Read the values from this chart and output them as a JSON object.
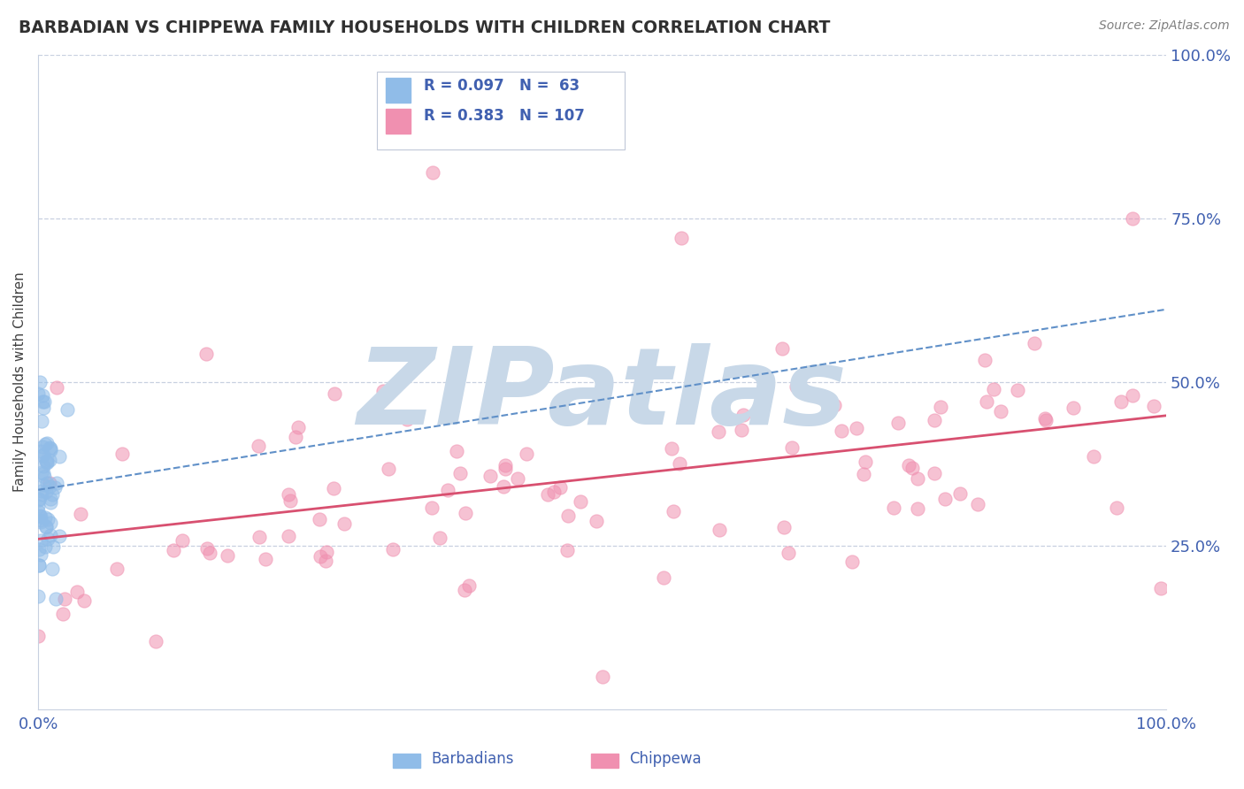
{
  "title": "BARBADIAN VS CHIPPEWA FAMILY HOUSEHOLDS WITH CHILDREN CORRELATION CHART",
  "source": "Source: ZipAtlas.com",
  "ylabel": "Family Households with Children",
  "xlim": [
    0,
    100
  ],
  "ylim": [
    0,
    100
  ],
  "ytick_positions": [
    25,
    50,
    75,
    100
  ],
  "ytick_labels": [
    "25.0%",
    "50.0%",
    "75.0%",
    "100.0%"
  ],
  "xtick_positions": [
    0,
    100
  ],
  "xtick_labels": [
    "0.0%",
    "100.0%"
  ],
  "barbadian_color": "#90bce8",
  "chippewa_color": "#f090b0",
  "trend_blue_color": "#6090c8",
  "trend_pink_color": "#d85070",
  "watermark": "ZIPatlas",
  "watermark_color": "#c8d8e8",
  "background_color": "#ffffff",
  "grid_color": "#c8d0e0",
  "title_color": "#303030",
  "axis_label_color": "#4060b0",
  "source_color": "#808080",
  "R_barbadian": 0.097,
  "N_barbadian": 63,
  "R_chippewa": 0.383,
  "N_chippewa": 107,
  "legend_text1": "R = 0.097   N =  63",
  "legend_text2": "R = 0.383   N = 107",
  "bottom_label1": "Barbadians",
  "bottom_label2": "Chippewa",
  "seed": 12345
}
